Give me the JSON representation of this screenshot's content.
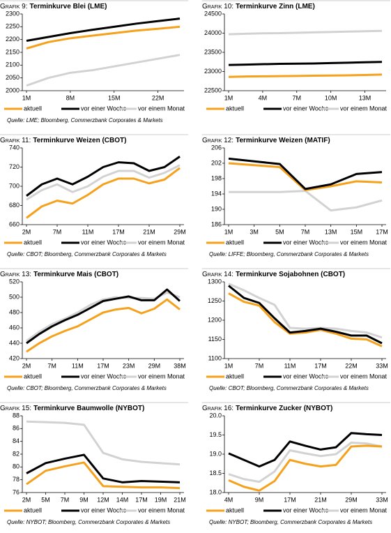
{
  "chart_data": [
    {
      "type": "line",
      "label": "Grafik 9:",
      "title": "Terminkurve Blei (LME)",
      "categories": [
        "1M",
        null,
        "8M",
        null,
        "15M",
        null,
        "22M",
        null
      ],
      "ylim": [
        2000,
        2300
      ],
      "yticks": [
        2000,
        2050,
        2100,
        2150,
        2200,
        2250,
        2300
      ],
      "series": [
        {
          "name": "aktuell",
          "color": "#f5a11c",
          "values": [
            2165,
            2190,
            2205,
            2215,
            2225,
            2235,
            2242,
            2250
          ]
        },
        {
          "name": "vor einer Woche",
          "color": "#000000",
          "values": [
            2195,
            2210,
            2225,
            2238,
            2250,
            2262,
            2272,
            2282
          ]
        },
        {
          "name": "vor einem Monat",
          "color": "#d2d2d2",
          "values": [
            2020,
            2050,
            2070,
            2080,
            2095,
            2110,
            2125,
            2140
          ]
        }
      ],
      "source": "Quelle: LME; Bloomberg, Commerzbank Corporates & Markets"
    },
    {
      "type": "line",
      "label": "Grafik 10:",
      "title": "Terminkurve Zinn (LME)",
      "categories": [
        "1M",
        null,
        "4M",
        null,
        "7M",
        null,
        "10M",
        null,
        "13M",
        null
      ],
      "ylim": [
        22500,
        24500
      ],
      "yticks": [
        22500,
        23000,
        23500,
        24000,
        24500
      ],
      "series": [
        {
          "name": "aktuell",
          "color": "#f5a11c",
          "values": [
            22860,
            22870,
            22875,
            22880,
            22885,
            22890,
            22895,
            22900,
            22910,
            22920
          ]
        },
        {
          "name": "vor einer Woche",
          "color": "#000000",
          "values": [
            23170,
            23180,
            23190,
            23200,
            23205,
            23210,
            23220,
            23230,
            23240,
            23250
          ]
        },
        {
          "name": "vor einem Monat",
          "color": "#d2d2d2",
          "values": [
            23970,
            23985,
            23995,
            24000,
            24010,
            24020,
            24030,
            24040,
            24050,
            24060
          ]
        }
      ]
    },
    {
      "type": "line",
      "label": "Grafik 11:",
      "title": "Terminkurve Weizen (CBOT)",
      "categories": [
        "2M",
        null,
        "7M",
        null,
        "11M",
        null,
        "17M",
        null,
        "21M",
        null,
        "29M"
      ],
      "ylim": [
        660,
        740
      ],
      "yticks": [
        660,
        680,
        700,
        720,
        740
      ],
      "series": [
        {
          "name": "aktuell",
          "color": "#f5a11c",
          "values": [
            667,
            679,
            685,
            682,
            691,
            702,
            708,
            708,
            703,
            707,
            719
          ]
        },
        {
          "name": "vor einer Woche",
          "color": "#000000",
          "values": [
            690,
            702,
            708,
            702,
            710,
            720,
            725,
            724,
            716,
            720,
            731
          ]
        },
        {
          "name": "vor einem Monat",
          "color": "#d2d2d2",
          "values": [
            686,
            696,
            702,
            694,
            700,
            710,
            716,
            716,
            709,
            714,
            722
          ]
        }
      ],
      "source": "Quelle: CBOT; Bloomberg, Commerzbank Corporates & Markets"
    },
    {
      "type": "line",
      "label": "Grafik 12:",
      "title": "Terminkurve Weizen (MATIF)",
      "categories": [
        "1M",
        "3M",
        "5M",
        "7M",
        "13M",
        "15M",
        "17M"
      ],
      "ylim": [
        186,
        206
      ],
      "yticks": [
        186,
        190,
        194,
        198,
        202,
        206
      ],
      "series": [
        {
          "name": "aktuell",
          "color": "#f5a11c",
          "values": [
            202,
            201.5,
            201,
            195,
            196,
            197.3,
            197
          ]
        },
        {
          "name": "vor einer Woche",
          "color": "#000000",
          "values": [
            203.2,
            202.5,
            201.8,
            195.3,
            196.5,
            199.2,
            199.7
          ]
        },
        {
          "name": "vor einem Monat",
          "color": "#d2d2d2",
          "values": [
            194.5,
            194.5,
            194.5,
            194.8,
            189.7,
            190.5,
            192.3
          ]
        }
      ],
      "source": "Quelle: LIFFE; Bloomberg, Commerzbank Corporates & Markets"
    },
    {
      "type": "line",
      "label": "Grafik 13:",
      "title": "Terminkurve Mais (CBOT)",
      "categories": [
        "2M",
        null,
        "7M",
        null,
        "11M",
        null,
        "17M",
        null,
        "23M",
        null,
        "29M",
        null,
        "38M"
      ],
      "ylim": [
        420,
        520
      ],
      "yticks": [
        420,
        440,
        460,
        480,
        500,
        520
      ],
      "series": [
        {
          "name": "aktuell",
          "color": "#f5a11c",
          "values": [
            429,
            440,
            449,
            456,
            462,
            471,
            480,
            484,
            486,
            479,
            485,
            497,
            484
          ]
        },
        {
          "name": "vor einer Woche",
          "color": "#000000",
          "values": [
            440,
            452,
            462,
            470,
            477,
            486,
            495,
            498,
            501,
            496,
            496,
            510,
            495
          ]
        },
        {
          "name": "vor einem Monat",
          "color": "#d2d2d2",
          "values": [
            443,
            455,
            465,
            472,
            480,
            490,
            497,
            500,
            499,
            499,
            498,
            506,
            500
          ]
        }
      ],
      "source": "Quelle: CBOT; Bloomberg, Commerzbank Corporates & Markets"
    },
    {
      "type": "line",
      "label": "Grafik 14:",
      "title": "Terminkurve Sojabohnen (CBOT)",
      "categories": [
        "1M",
        null,
        "7M",
        null,
        "11M",
        null,
        "17M",
        null,
        "22M",
        null,
        "33M"
      ],
      "ylim": [
        1100,
        1300
      ],
      "yticks": [
        1100,
        1150,
        1200,
        1250,
        1300
      ],
      "series": [
        {
          "name": "aktuell",
          "color": "#f5a11c",
          "values": [
            1270,
            1248,
            1238,
            1195,
            1165,
            1168,
            1175,
            1165,
            1152,
            1150,
            1132
          ]
        },
        {
          "name": "vor einer Woche",
          "color": "#000000",
          "values": [
            1290,
            1258,
            1245,
            1205,
            1168,
            1172,
            1178,
            1170,
            1160,
            1160,
            1140
          ]
        },
        {
          "name": "vor einem Monat",
          "color": "#d2d2d2",
          "values": [
            1295,
            1278,
            1258,
            1240,
            1180,
            1178,
            1180,
            1178,
            1172,
            1168,
            1155
          ]
        }
      ],
      "source": "Quelle: CBOT; Bloomberg, Commerzbank Corporates & Markets"
    },
    {
      "type": "line",
      "label": "Grafik 15:",
      "title": "Terminkurve Baumwolle (NYBOT)",
      "categories": [
        "2M",
        "5M",
        "7M",
        "9M",
        "12M",
        "14M",
        "17M",
        "19M",
        "21M"
      ],
      "ylim": [
        76,
        88
      ],
      "yticks": [
        76,
        78,
        80,
        82,
        84,
        86,
        88
      ],
      "series": [
        {
          "name": "aktuell",
          "color": "#f5a11c",
          "values": [
            77.3,
            79.4,
            80.1,
            80.7,
            77.0,
            76.9,
            76.8,
            76.8,
            76.7
          ]
        },
        {
          "name": "vor einer Woche",
          "color": "#000000",
          "values": [
            79.0,
            80.6,
            81.3,
            81.9,
            78.2,
            77.6,
            77.8,
            77.7,
            77.6
          ]
        },
        {
          "name": "vor einem Monat",
          "color": "#d2d2d2",
          "values": [
            87.1,
            87.0,
            86.9,
            86.6,
            82.2,
            81.2,
            80.8,
            80.6,
            80.4
          ]
        }
      ],
      "source": "Quelle: NYBOT; Bloomberg, Commerzbank Corporates & Markets"
    },
    {
      "type": "line",
      "label": "Grafik 16:",
      "title": "Terminkurve Zucker (NYBOT)",
      "categories": [
        "4M",
        null,
        "9M",
        null,
        "17M",
        null,
        "21M",
        null,
        "29M",
        null,
        "33M"
      ],
      "ylim": [
        18,
        20
      ],
      "yticks": [
        {
          "value": 18,
          "label": "18.0"
        },
        18.5,
        {
          "value": 19,
          "label": "19.0"
        },
        19.5,
        {
          "value": 20,
          "label": "20.0"
        }
      ],
      "series": [
        {
          "name": "aktuell",
          "color": "#f5a11c",
          "values": [
            18.32,
            18.15,
            18.05,
            18.3,
            18.85,
            18.75,
            18.68,
            18.72,
            19.2,
            19.22,
            19.2
          ]
        },
        {
          "name": "vor einer Woche",
          "color": "#000000",
          "values": [
            19.02,
            18.85,
            18.68,
            18.85,
            19.33,
            19.22,
            19.12,
            19.18,
            19.55,
            19.52,
            19.5
          ]
        },
        {
          "name": "vor einem Monat",
          "color": "#d2d2d2",
          "values": [
            18.48,
            18.35,
            18.28,
            18.55,
            19.1,
            19.02,
            18.95,
            19.0,
            19.3,
            19.28,
            19.2
          ]
        }
      ],
      "source": "Quelle: NYBOT; Bloomberg, Commerzbank Corporates & Markets"
    }
  ]
}
